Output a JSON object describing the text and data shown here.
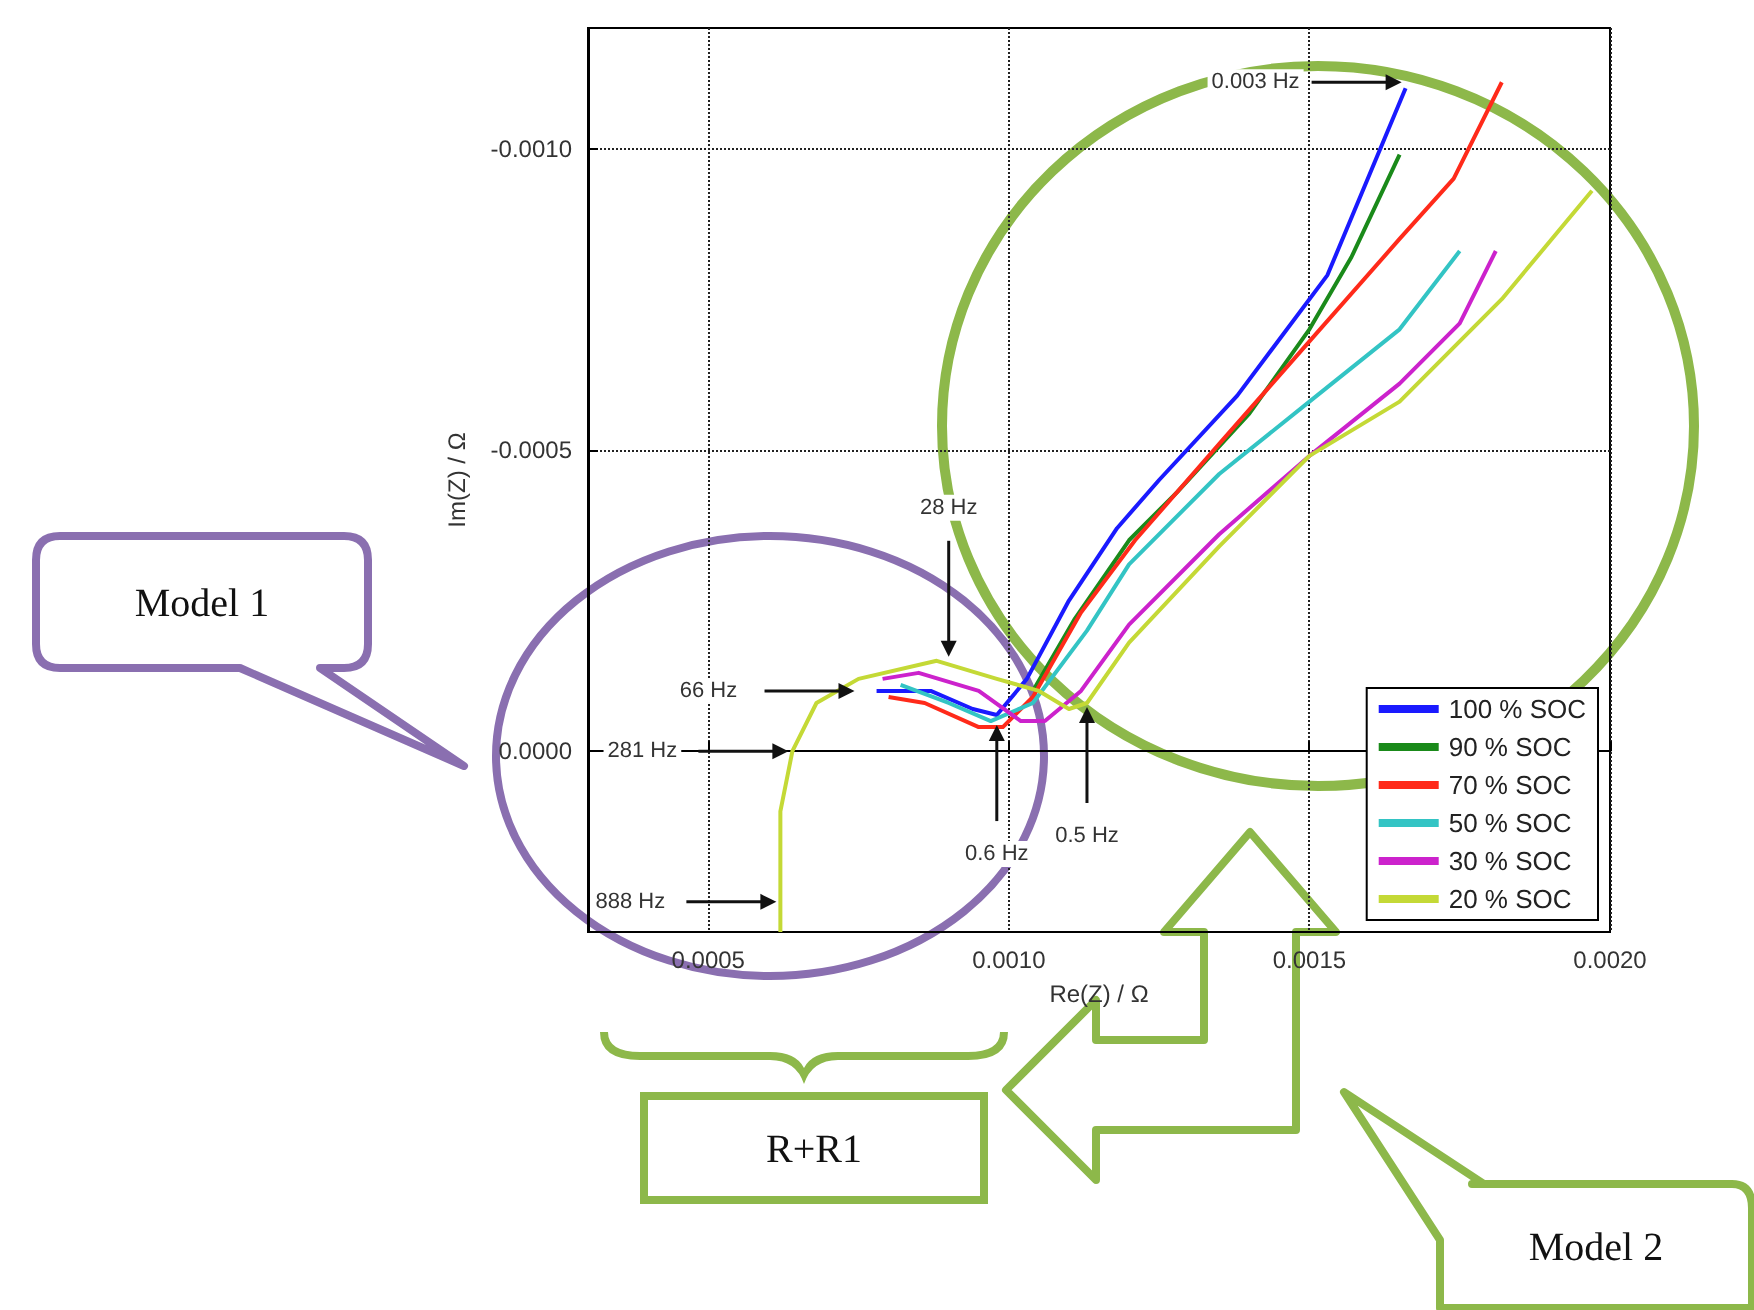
{
  "chart_data": {
    "type": "line",
    "xlabel": "Re(Z) / Ω",
    "ylabel": "Im(Z) / Ω",
    "xlim": [
      0.0003,
      0.002
    ],
    "ylim": [
      0.0003,
      -0.0012
    ],
    "xticks": [
      {
        "value": 0.0005,
        "label": "0.0005"
      },
      {
        "value": 0.001,
        "label": "0.0010"
      },
      {
        "value": 0.0015,
        "label": "0.0015"
      },
      {
        "value": 0.002,
        "label": "0.0020"
      }
    ],
    "yticks": [
      {
        "value": -0.001,
        "label": "-0.0010"
      },
      {
        "value": -0.0005,
        "label": "-0.0005"
      },
      {
        "value": 0,
        "label": "0.0000"
      }
    ],
    "grid": true,
    "legend": "bottom right",
    "marker": "none",
    "line_style": "solid",
    "series": [
      {
        "name": "100 % SOC",
        "color": "#1a1aff",
        "x": [
          0.00078,
          0.00087,
          0.00094,
          0.00098,
          0.00103,
          0.0011,
          0.00118,
          0.00125,
          0.00138,
          0.00153,
          0.00166
        ],
        "values": [
          -0.0001,
          -0.0001,
          -7e-05,
          -6e-05,
          -0.00012,
          -0.00025,
          -0.00037,
          -0.00045,
          -0.00059,
          -0.00079,
          -0.0011
        ]
      },
      {
        "name": "90 % SOC",
        "color": "#1a8a1a",
        "x": [
          0.00104,
          0.00111,
          0.0012,
          0.00128,
          0.0014,
          0.0015,
          0.00157,
          0.00165
        ],
        "values": [
          -0.0001,
          -0.00022,
          -0.00035,
          -0.00043,
          -0.00056,
          -0.0007,
          -0.00082,
          -0.00099
        ]
      },
      {
        "name": "70 % SOC",
        "color": "#ff2a1a",
        "x": [
          0.0008,
          0.00086,
          0.00095,
          0.00099,
          0.00104,
          0.00112,
          0.00121,
          0.00135,
          0.0015,
          0.00165,
          0.00174,
          0.00182
        ],
        "values": [
          -9e-05,
          -8e-05,
          -4e-05,
          -4e-05,
          -9e-05,
          -0.00023,
          -0.00035,
          -0.00051,
          -0.00068,
          -0.00085,
          -0.00095,
          -0.00111
        ]
      },
      {
        "name": "50 % SOC",
        "color": "#33c4c4",
        "x": [
          0.00082,
          0.0009,
          0.00097,
          0.00104,
          0.00113,
          0.0012,
          0.00135,
          0.0015,
          0.00165,
          0.00175
        ],
        "values": [
          -0.00011,
          -8e-05,
          -5e-05,
          -8e-05,
          -0.0002,
          -0.00031,
          -0.00046,
          -0.00058,
          -0.0007,
          -0.00083
        ]
      },
      {
        "name": "30 % SOC",
        "color": "#cc22cc",
        "x": [
          0.00079,
          0.00085,
          0.00095,
          0.00102,
          0.00106,
          0.00112,
          0.0012,
          0.00135,
          0.0015,
          0.00165,
          0.00175,
          0.00181
        ],
        "values": [
          -0.00012,
          -0.00013,
          -0.0001,
          -5e-05,
          -5e-05,
          -0.0001,
          -0.00021,
          -0.00036,
          -0.00049,
          -0.00061,
          -0.00071,
          -0.00083
        ]
      },
      {
        "name": "20 % SOC",
        "color": "#c4d936",
        "x": [
          0.00062,
          0.00062,
          0.00064,
          0.00068,
          0.00075,
          0.00088,
          0.00098,
          0.00105,
          0.0011,
          0.00113,
          0.0012,
          0.00135,
          0.0015,
          0.00165,
          0.00182,
          0.00197
        ],
        "values": [
          0.0003,
          0.0001,
          0,
          -8e-05,
          -0.00012,
          -0.00015,
          -0.00012,
          -0.0001,
          -7e-05,
          -8e-05,
          -0.00018,
          -0.00034,
          -0.00049,
          -0.00058,
          -0.00075,
          -0.00093
        ]
      }
    ],
    "annotations": [
      {
        "text": "888 Hz",
        "x": 0.00062,
        "y": 0.00025
      },
      {
        "text": "281 Hz",
        "x": 0.00064,
        "y": 0
      },
      {
        "text": "66 Hz",
        "x": 0.00075,
        "y": -0.0001
      },
      {
        "text": "28 Hz",
        "x": 0.0009,
        "y": -0.00015
      },
      {
        "text": "0.6 Hz",
        "x": 0.00098,
        "y": -5e-05
      },
      {
        "text": "0.5 Hz",
        "x": 0.00113,
        "y": -8e-05
      },
      {
        "text": "0.003 Hz",
        "x": 0.00166,
        "y": -0.00111
      },
      "Model 1",
      "R+R1",
      "Model 2"
    ]
  }
}
